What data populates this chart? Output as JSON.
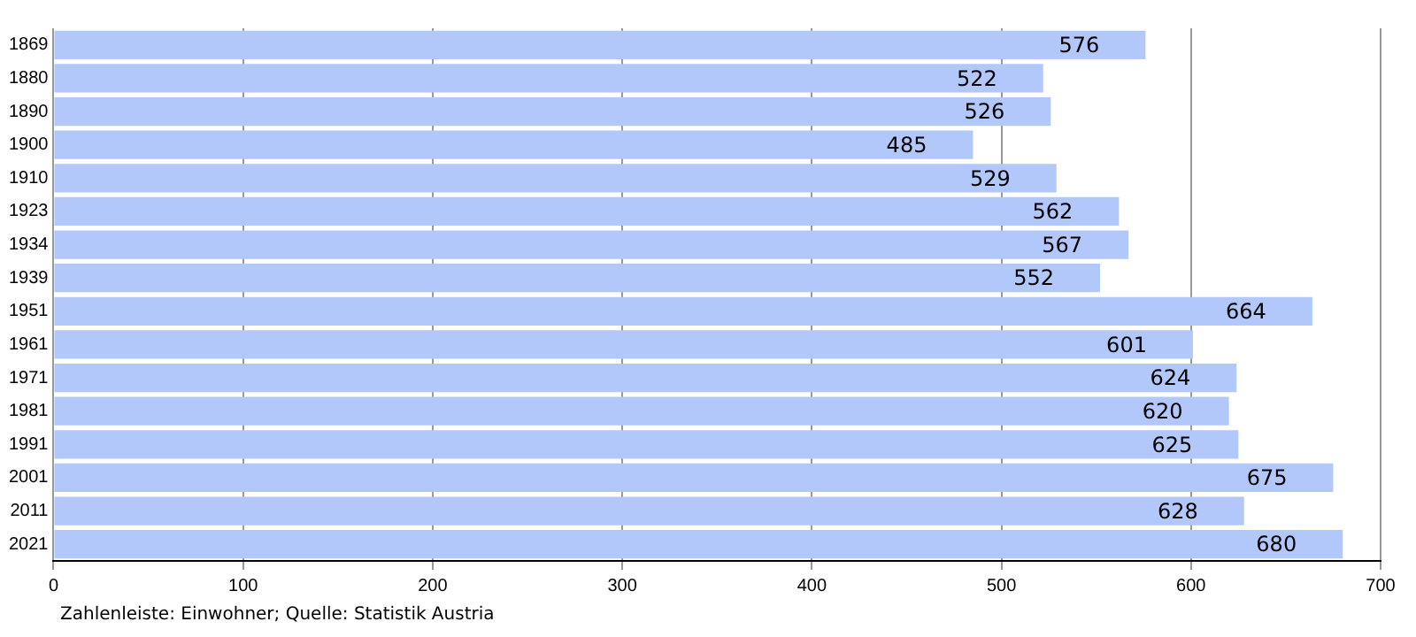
{
  "chart_data": {
    "type": "bar",
    "orientation": "horizontal",
    "categories": [
      "1869",
      "1880",
      "1890",
      "1900",
      "1910",
      "1923",
      "1934",
      "1939",
      "1951",
      "1961",
      "1971",
      "1981",
      "1991",
      "2001",
      "2011",
      "2021"
    ],
    "values": [
      576,
      522,
      526,
      485,
      529,
      562,
      567,
      552,
      664,
      601,
      624,
      620,
      625,
      675,
      628,
      680
    ],
    "color": "#b3c8fa",
    "xlim": [
      0,
      700
    ],
    "xticks": [
      0,
      100,
      200,
      300,
      400,
      500,
      600,
      700
    ],
    "grid": "x",
    "data_labels": true,
    "legend": false,
    "annotations": [
      "Zahlenleiste: Einwohner; Quelle: Statistik Austria"
    ]
  }
}
